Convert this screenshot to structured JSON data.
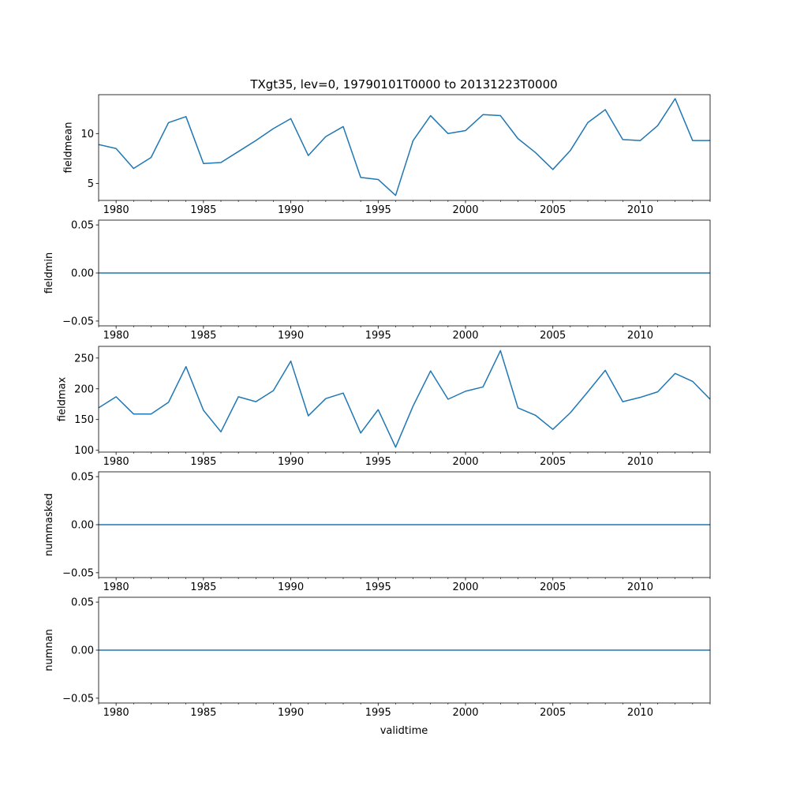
{
  "figure": {
    "title": "TXgt35, lev=0, 19790101T0000 to 20131223T0000",
    "xlabel": "validtime",
    "line_color": "#1f77b4"
  },
  "chart_data": [
    {
      "type": "line",
      "ylabel": "fieldmean",
      "xlim": [
        1979,
        2014
      ],
      "ylim": [
        3.3,
        13.9
      ],
      "yticks": [
        5,
        10
      ],
      "ytick_labels": [
        "5",
        "10"
      ],
      "xticks": [
        1980,
        1985,
        1990,
        1995,
        2000,
        2005,
        2010
      ],
      "xtick_labels": [
        "1980",
        "1985",
        "1990",
        "1995",
        "2000",
        "2005",
        "2010"
      ],
      "x": [
        1979,
        1980,
        1981,
        1982,
        1983,
        1984,
        1985,
        1986,
        1987,
        1988,
        1989,
        1990,
        1991,
        1992,
        1993,
        1994,
        1995,
        1996,
        1997,
        1998,
        1999,
        2000,
        2001,
        2002,
        2003,
        2004,
        2005,
        2006,
        2007,
        2008,
        2009,
        2010,
        2011,
        2012,
        2013,
        2014
      ],
      "series": [
        {
          "values": [
            8.9,
            8.5,
            6.5,
            7.6,
            11.1,
            11.7,
            7.0,
            7.1,
            8.2,
            9.3,
            10.5,
            11.5,
            7.8,
            9.7,
            10.7,
            5.6,
            5.4,
            3.8,
            9.3,
            11.8,
            10.0,
            10.3,
            11.9,
            11.8,
            9.5,
            8.1,
            6.4,
            8.3,
            11.1,
            12.4,
            9.4,
            9.3,
            10.8,
            13.5,
            9.3,
            9.3
          ]
        }
      ]
    },
    {
      "type": "line",
      "ylabel": "fieldmin",
      "xlim": [
        1979,
        2014
      ],
      "ylim": [
        -0.055,
        0.055
      ],
      "yticks": [
        -0.05,
        0.0,
        0.05
      ],
      "ytick_labels": [
        "−0.05",
        "0.00",
        "0.05"
      ],
      "xticks": [
        1980,
        1985,
        1990,
        1995,
        2000,
        2005,
        2010
      ],
      "xtick_labels": [
        "1980",
        "1985",
        "1990",
        "1995",
        "2000",
        "2005",
        "2010"
      ],
      "x": [
        1979,
        2014
      ],
      "series": [
        {
          "values": [
            0,
            0
          ]
        }
      ]
    },
    {
      "type": "line",
      "ylabel": "fieldmax",
      "xlim": [
        1979,
        2014
      ],
      "ylim": [
        97,
        269
      ],
      "yticks": [
        100,
        150,
        200,
        250
      ],
      "ytick_labels": [
        "100",
        "150",
        "200",
        "250"
      ],
      "xticks": [
        1980,
        1985,
        1990,
        1995,
        2000,
        2005,
        2010
      ],
      "xtick_labels": [
        "1980",
        "1985",
        "1990",
        "1995",
        "2000",
        "2005",
        "2010"
      ],
      "x": [
        1979,
        1980,
        1981,
        1982,
        1983,
        1984,
        1985,
        1986,
        1987,
        1988,
        1989,
        1990,
        1991,
        1992,
        1993,
        1994,
        1995,
        1996,
        1997,
        1998,
        1999,
        2000,
        2001,
        2002,
        2003,
        2004,
        2005,
        2006,
        2007,
        2008,
        2009,
        2010,
        2011,
        2012,
        2013,
        2014
      ],
      "series": [
        {
          "values": [
            169,
            187,
            159,
            159,
            178,
            236,
            165,
            130,
            187,
            179,
            197,
            245,
            156,
            184,
            193,
            128,
            166,
            105,
            172,
            229,
            183,
            196,
            203,
            262,
            169,
            157,
            134,
            161,
            195,
            230,
            179,
            186,
            195,
            225,
            212,
            183
          ]
        }
      ]
    },
    {
      "type": "line",
      "ylabel": "nummasked",
      "xlim": [
        1979,
        2014
      ],
      "ylim": [
        -0.055,
        0.055
      ],
      "yticks": [
        -0.05,
        0.0,
        0.05
      ],
      "ytick_labels": [
        "−0.05",
        "0.00",
        "0.05"
      ],
      "xticks": [
        1980,
        1985,
        1990,
        1995,
        2000,
        2005,
        2010
      ],
      "xtick_labels": [
        "1980",
        "1985",
        "1990",
        "1995",
        "2000",
        "2005",
        "2010"
      ],
      "x": [
        1979,
        2014
      ],
      "series": [
        {
          "values": [
            0,
            0
          ]
        }
      ]
    },
    {
      "type": "line",
      "ylabel": "numnan",
      "xlim": [
        1979,
        2014
      ],
      "ylim": [
        -0.055,
        0.055
      ],
      "yticks": [
        -0.05,
        0.0,
        0.05
      ],
      "ytick_labels": [
        "−0.05",
        "0.00",
        "0.05"
      ],
      "xticks": [
        1980,
        1985,
        1990,
        1995,
        2000,
        2005,
        2010
      ],
      "xtick_labels": [
        "1980",
        "1985",
        "1990",
        "1995",
        "2000",
        "2005",
        "2010"
      ],
      "x": [
        1979,
        2014
      ],
      "series": [
        {
          "values": [
            0,
            0
          ]
        }
      ]
    }
  ]
}
